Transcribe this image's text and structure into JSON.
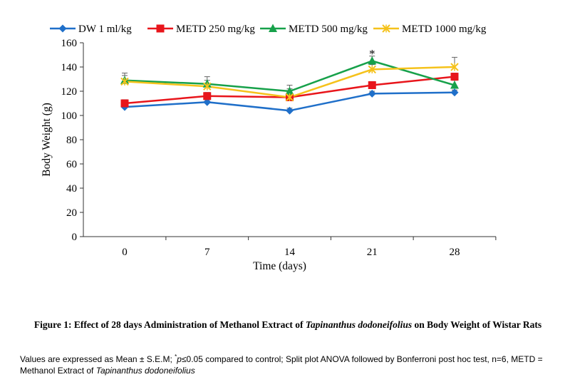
{
  "chart_data": {
    "type": "line",
    "title": "",
    "xlabel": "Time (days)",
    "ylabel": "Body Weight (g)",
    "x": [
      0,
      7,
      14,
      21,
      28
    ],
    "x_ticks": [
      "0",
      "7",
      "14",
      "21",
      "28"
    ],
    "ylim": [
      0,
      160
    ],
    "y_ticks": [
      "0",
      "20",
      "40",
      "60",
      "80",
      "100",
      "120",
      "140",
      "160"
    ],
    "grid": false,
    "legend_position": "top",
    "series": [
      {
        "name": "DW 1 ml/kg",
        "color": "#1f6fc9",
        "marker": "diamond",
        "values": [
          107,
          111,
          104,
          118,
          119
        ],
        "errors": [
          2,
          2,
          2,
          2,
          2
        ]
      },
      {
        "name": "METD 250 mg/kg",
        "color": "#e8151b",
        "marker": "square",
        "values": [
          110,
          116,
          115,
          125,
          132
        ],
        "errors": [
          3,
          3,
          3,
          3,
          3
        ]
      },
      {
        "name": "METD 500 mg/kg",
        "color": "#17a14a",
        "marker": "triangle",
        "values": [
          129,
          126,
          120,
          145,
          125
        ],
        "errors": [
          6,
          6,
          5,
          4,
          4
        ]
      },
      {
        "name": "METD 1000 mg/kg",
        "color": "#f5c21b",
        "marker": "x",
        "values": [
          128,
          124,
          115,
          138,
          140
        ],
        "errors": [
          5,
          5,
          7,
          4,
          8
        ]
      }
    ],
    "annotations": [
      {
        "text": "*",
        "x": 21,
        "y": 150
      }
    ]
  },
  "caption": {
    "prefix": "Figure 1: Effect of 28 days Administration of Methanol Extract of ",
    "species": "Tapinanthus dodoneifolius",
    "suffix": " on Body Weight of Wistar Rats"
  },
  "note": {
    "part1": "Values are expressed as Mean ± S.E.M; ",
    "sup": "*",
    "p_italic": "p",
    "part2": "≤0.05 compared to control; Split plot ANOVA followed by Bonferroni post hoc test, n=6, METD = Methanol Extract of ",
    "species": "Tapinanthus dodoneifolius"
  }
}
